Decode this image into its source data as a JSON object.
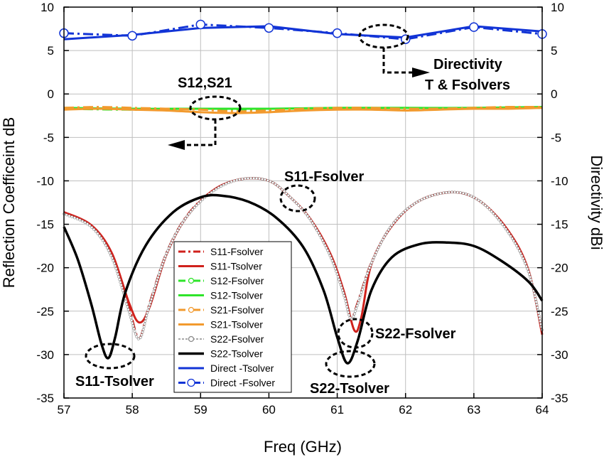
{
  "chart_data": {
    "type": "line",
    "xlabel": "Freq (GHz)",
    "ylabel_left": "Reflection Coefficeint dB",
    "ylabel_right": "Directivity dBi",
    "xlim": [
      57,
      64
    ],
    "ylim_left": [
      -35,
      10
    ],
    "ylim_right": [
      -35,
      10
    ],
    "x_ticks": [
      "57",
      "58",
      "59",
      "60",
      "61",
      "62",
      "63",
      "64"
    ],
    "y_ticks": [
      "10",
      "5",
      "0",
      "-5",
      "-10",
      "-15",
      "-20",
      "-25",
      "-30",
      "-35"
    ],
    "grid": true,
    "legend_position": "center",
    "colors": {
      "red": "#d0211c",
      "green": "#2ee42a",
      "orange": "#f29a2e",
      "black": "#000000",
      "blue": "#1234d6",
      "gray": "#a8a8a8"
    },
    "series": [
      {
        "name": "S11-Fsolver",
        "x": [
          57,
          57.4,
          57.7,
          57.95,
          58.1,
          58.25,
          58.5,
          58.8,
          59.2,
          59.6,
          60.0,
          60.3,
          60.6,
          60.9,
          61.1,
          61.2,
          61.3,
          61.5,
          61.8,
          62.2,
          62.7,
          63.1,
          63.5,
          63.8,
          64
        ],
        "y": [
          -13.7,
          -15.2,
          -18.6,
          -24.5,
          -28.1,
          -24.2,
          -18.3,
          -14.0,
          -11.0,
          -9.8,
          -10.0,
          -11.8,
          -14.4,
          -18.6,
          -23.0,
          -25.8,
          -24.0,
          -19.4,
          -15.1,
          -12.3,
          -11.3,
          -12.4,
          -15.8,
          -20.4,
          -27.3
        ]
      },
      {
        "name": "S11-Tsolver",
        "x": [
          57,
          57.4,
          57.7,
          57.95,
          58.1,
          58.25,
          58.5,
          58.8,
          59.2,
          59.6,
          60.0,
          60.3,
          60.6,
          60.9,
          61.1,
          61.25,
          61.35,
          61.5,
          61.8,
          62.2,
          62.7,
          63.1,
          63.5,
          63.8,
          64
        ],
        "y": [
          -13.6,
          -15.1,
          -18.3,
          -24.0,
          -26.3,
          -24.6,
          -18.5,
          -14.1,
          -11.0,
          -9.8,
          -10.0,
          -11.8,
          -14.3,
          -18.4,
          -22.8,
          -27.2,
          -25.8,
          -19.6,
          -15.2,
          -12.3,
          -11.3,
          -12.4,
          -15.7,
          -20.3,
          -27.7
        ]
      },
      {
        "name": "S12-Fsolver",
        "x": [
          57,
          58,
          59,
          60,
          61,
          62,
          63,
          64
        ],
        "y": [
          -1.7,
          -1.8,
          -1.7,
          -1.8,
          -1.7,
          -1.7,
          -1.6,
          -1.6
        ]
      },
      {
        "name": "S12-Tsolver",
        "x": [
          57,
          58,
          59,
          60,
          61,
          62,
          63,
          64
        ],
        "y": [
          -1.6,
          -1.7,
          -1.7,
          -1.7,
          -1.6,
          -1.6,
          -1.6,
          -1.5
        ]
      },
      {
        "name": "S21-Fsolver",
        "x": [
          57,
          57.5,
          58,
          58.5,
          59,
          59.5,
          60,
          60.5,
          61,
          61.5,
          62,
          62.5,
          63,
          63.5,
          64
        ],
        "y": [
          -1.6,
          -1.5,
          -1.6,
          -1.7,
          -1.8,
          -2.0,
          -1.9,
          -1.7,
          -1.6,
          -1.6,
          -1.7,
          -1.7,
          -1.6,
          -1.5,
          -1.5
        ]
      },
      {
        "name": "S21-Tsolver",
        "x": [
          57,
          57.5,
          58,
          58.5,
          59,
          59.5,
          60,
          60.5,
          61,
          61.5,
          62,
          62.5,
          63,
          63.5,
          64
        ],
        "y": [
          -1.8,
          -1.7,
          -1.8,
          -1.9,
          -2.1,
          -2.2,
          -2.1,
          -1.9,
          -1.8,
          -1.8,
          -1.9,
          -1.8,
          -1.7,
          -1.7,
          -1.6
        ]
      },
      {
        "name": "S22-Fsolver",
        "x": [
          57,
          57.4,
          57.7,
          57.95,
          58.1,
          58.25,
          58.5,
          58.8,
          59.2,
          59.6,
          60.0,
          60.3,
          60.6,
          60.9,
          61.1,
          61.2,
          61.3,
          61.5,
          61.8,
          62.2,
          62.7,
          63.1,
          63.5,
          63.8,
          64
        ],
        "y": [
          -13.8,
          -15.3,
          -18.8,
          -25.0,
          -28.2,
          -24.4,
          -18.4,
          -14.1,
          -11.1,
          -9.8,
          -10.0,
          -11.8,
          -14.4,
          -18.7,
          -23.2,
          -25.9,
          -24.2,
          -19.5,
          -15.1,
          -12.3,
          -11.3,
          -12.4,
          -15.9,
          -20.5,
          -27.2
        ]
      },
      {
        "name": "S22-Tsolver",
        "x": [
          57,
          57.2,
          57.4,
          57.55,
          57.65,
          57.75,
          57.9,
          58.2,
          58.6,
          59.0,
          59.3,
          59.7,
          60.1,
          60.5,
          60.8,
          61.0,
          61.15,
          61.3,
          61.5,
          61.8,
          62.2,
          62.6,
          63.0,
          63.4,
          63.8,
          64
        ],
        "y": [
          -15.3,
          -19.0,
          -24.2,
          -28.8,
          -30.4,
          -28.0,
          -22.8,
          -17.4,
          -13.6,
          -11.9,
          -11.7,
          -12.4,
          -14.2,
          -17.6,
          -22.6,
          -28.0,
          -31.0,
          -28.4,
          -22.6,
          -18.8,
          -17.3,
          -17.1,
          -17.5,
          -19.2,
          -21.6,
          -23.8
        ]
      },
      {
        "name": "Direct -Tsolver",
        "x": [
          57,
          58,
          59,
          60,
          61,
          62,
          63,
          64
        ],
        "y": [
          6.3,
          6.8,
          7.6,
          7.8,
          6.9,
          6.5,
          7.8,
          7.2
        ]
      },
      {
        "name": "Direct -Fsolver",
        "x": [
          57,
          58,
          59,
          60,
          61,
          62,
          63,
          64
        ],
        "y": [
          7.0,
          6.7,
          8.0,
          7.6,
          7.0,
          6.3,
          7.7,
          6.9
        ]
      }
    ],
    "annotations": [
      {
        "text": "S12,S21"
      },
      {
        "text": "Directivity"
      },
      {
        "text": "T & Fsolvers"
      },
      {
        "text": "S11-Fsolver"
      },
      {
        "text": "S11-Tsolver"
      },
      {
        "text": "S22-Fsolver"
      },
      {
        "text": "S22-Tsolver"
      }
    ]
  }
}
